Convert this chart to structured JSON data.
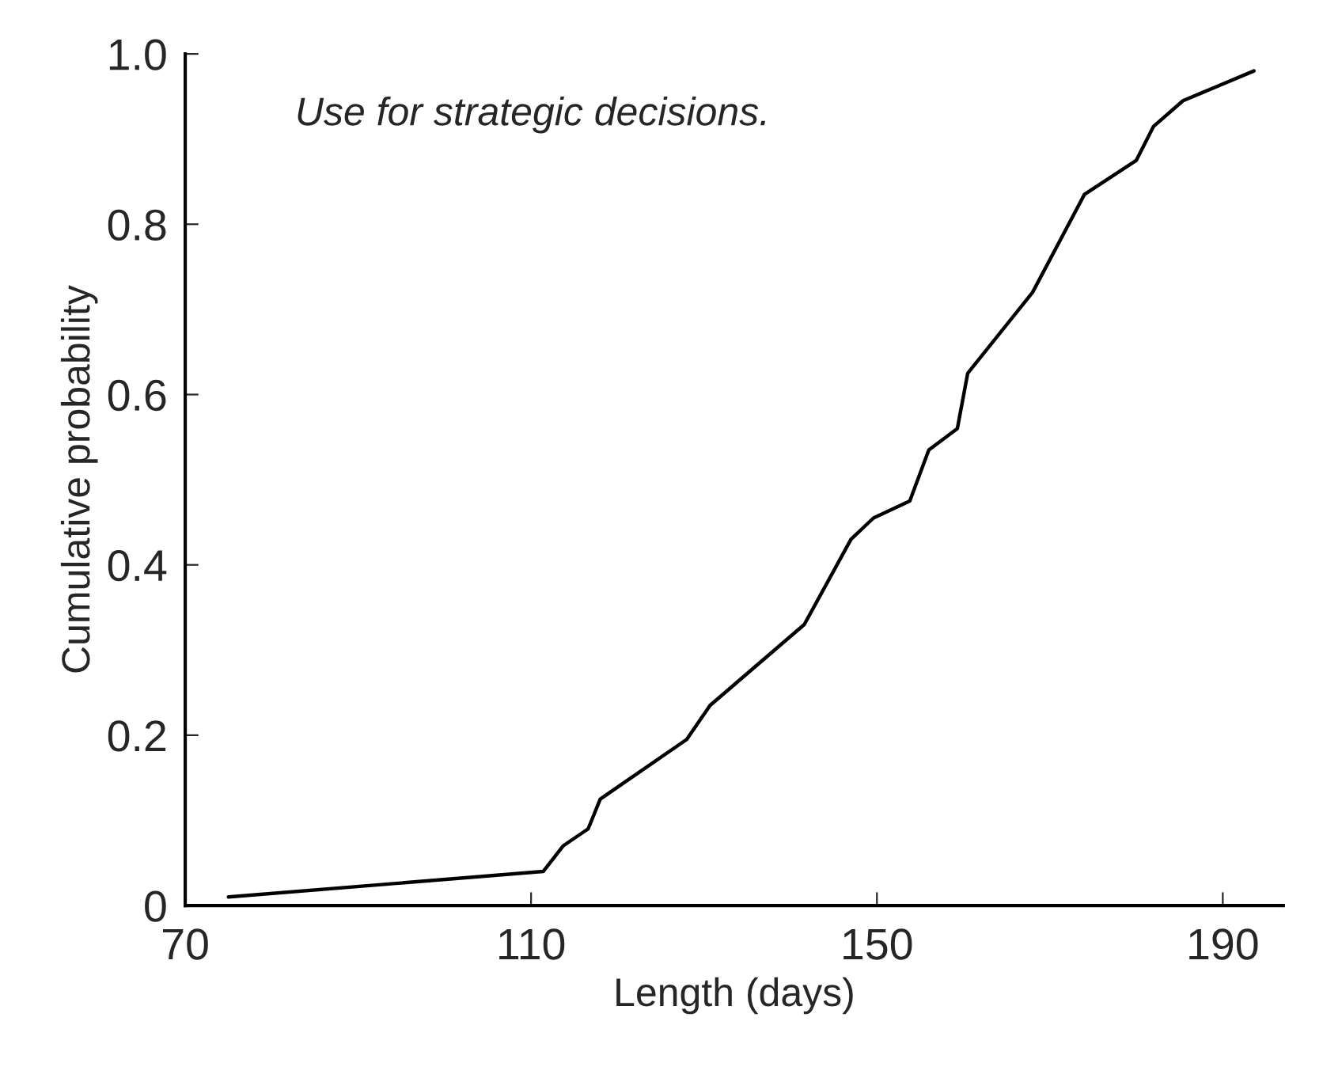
{
  "chart_data": {
    "type": "line",
    "xlabel": "Length (days)",
    "ylabel": "Cumulative probability",
    "annotations": [
      "Use for strategic decisions."
    ],
    "x": [
      75,
      111.4,
      113.7,
      116.6,
      118,
      128,
      130.7,
      141.6,
      147,
      149.6,
      153.8,
      156,
      159.3,
      160.5,
      168,
      174,
      180,
      182,
      185.4,
      193.6
    ],
    "series": [
      {
        "color": "#000000",
        "values": [
          0.01,
          0.04,
          0.07,
          0.09,
          0.125,
          0.195,
          0.235,
          0.33,
          0.43,
          0.455,
          0.475,
          0.535,
          0.56,
          0.625,
          0.72,
          0.835,
          0.875,
          0.915,
          0.945,
          0.98
        ]
      }
    ],
    "xlim": [
      70,
      197
    ],
    "ylim": [
      0,
      1.0
    ],
    "xticks": [
      70,
      110,
      150,
      190
    ],
    "yticks": [
      0,
      0.2,
      0.4,
      0.6,
      0.8,
      {
        "value": 1,
        "label": "1.0"
      }
    ],
    "grid": false,
    "legend": false,
    "marker": "none",
    "line_style": "solid"
  }
}
